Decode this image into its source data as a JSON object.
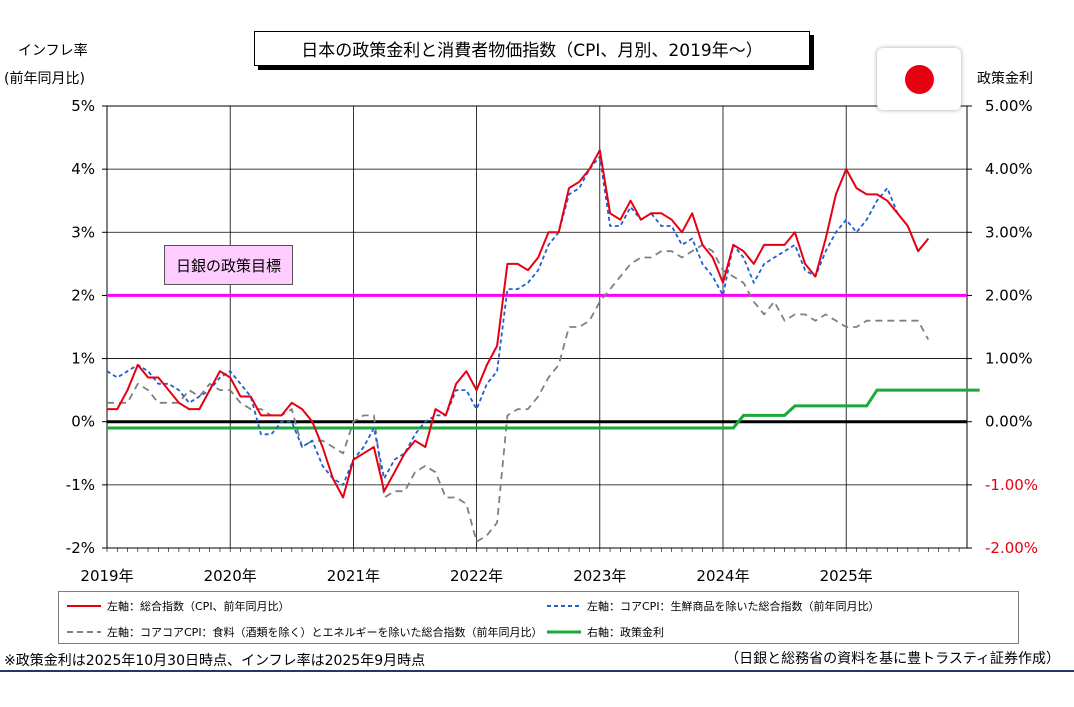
{
  "title": "日本の政策金利と消費者物価指数（CPI、月別、2019年～）",
  "left_axis_title": [
    "インフレ率",
    "(前年同月比)"
  ],
  "right_axis_title": "政策金利",
  "target_label": "日銀の政策目標",
  "footnote": "※政策金利は2025年10月30日時点、インフレ率は2025年9月時点",
  "source": "（日銀と総務省の資料を基に豊トラスティ証券作成）",
  "flag_icon": "japan-flag-icon",
  "colors": {
    "headline": "#e60012",
    "core": "#1f5fd6",
    "corecore": "#808080",
    "policy_rate": "#1aaa3a",
    "target": "#ff00ff",
    "zero_line": "#000000",
    "left_negative_tick": "#000000",
    "right_negative_tick": "#e60012"
  },
  "legend": [
    {
      "label": "左軸：総合指数（CPI、前年同月比）",
      "series": "headline"
    },
    {
      "label": "左軸：コアCPI：生鮮商品を除いた総合指数（前年同月比）",
      "series": "core"
    },
    {
      "label": "左軸：コアコアCPI：食料（酒類を除く）とエネルギーを除いた総合指数（前年同月比）",
      "series": "corecore"
    },
    {
      "label": "右軸：政策金利",
      "series": "policy_rate"
    }
  ],
  "chart_data": {
    "type": "line",
    "x_labels": [
      "2019年",
      "2020年",
      "2021年",
      "2022年",
      "2023年",
      "2024年",
      "2025年"
    ],
    "x_start": "2019-01",
    "left_axis": {
      "ylim": [
        -2,
        5
      ],
      "ticks": [
        "-2%",
        "-1%",
        "0%",
        "1%",
        "2%",
        "3%",
        "4%",
        "5%"
      ]
    },
    "right_axis": {
      "ylim": [
        -2.0,
        5.0
      ],
      "ticks": [
        "-2.00%",
        "-1.00%",
        "0.00%",
        "1.00%",
        "2.00%",
        "3.00%",
        "4.00%",
        "5.00%"
      ]
    },
    "grid": true,
    "target_value": 2.0,
    "series": [
      {
        "key": "headline",
        "name": "左軸：総合指数（CPI、前年同月比）",
        "axis": "left",
        "style": "solid",
        "values": [
          0.2,
          0.2,
          0.5,
          0.9,
          0.7,
          0.7,
          0.5,
          0.3,
          0.2,
          0.2,
          0.5,
          0.8,
          0.7,
          0.4,
          0.4,
          0.1,
          0.1,
          0.1,
          0.3,
          0.2,
          0.0,
          -0.4,
          -0.9,
          -1.2,
          -0.6,
          -0.5,
          -0.4,
          -1.1,
          -0.8,
          -0.5,
          -0.3,
          -0.4,
          0.2,
          0.1,
          0.6,
          0.8,
          0.5,
          0.9,
          1.2,
          2.5,
          2.5,
          2.4,
          2.6,
          3.0,
          3.0,
          3.7,
          3.8,
          4.0,
          4.3,
          3.3,
          3.2,
          3.5,
          3.2,
          3.3,
          3.3,
          3.2,
          3.0,
          3.3,
          2.8,
          2.6,
          2.2,
          2.8,
          2.7,
          2.5,
          2.8,
          2.8,
          2.8,
          3.0,
          2.5,
          2.3,
          2.9,
          3.6,
          4.0,
          3.7,
          3.6,
          3.6,
          3.5,
          3.3,
          3.1,
          2.7,
          2.9
        ]
      },
      {
        "key": "core",
        "name": "左軸：コアCPI：生鮮商品を除いた総合指数（前年同月比）",
        "axis": "left",
        "style": "dashed",
        "values": [
          0.8,
          0.7,
          0.8,
          0.9,
          0.8,
          0.6,
          0.6,
          0.5,
          0.3,
          0.4,
          0.5,
          0.7,
          0.8,
          0.6,
          0.4,
          -0.2,
          -0.2,
          0.0,
          0.0,
          -0.4,
          -0.3,
          -0.7,
          -0.9,
          -1.0,
          -0.6,
          -0.4,
          -0.1,
          -0.9,
          -0.6,
          -0.5,
          -0.2,
          0.0,
          0.1,
          0.1,
          0.5,
          0.5,
          0.2,
          0.6,
          0.8,
          2.1,
          2.1,
          2.2,
          2.4,
          2.8,
          3.0,
          3.6,
          3.7,
          4.0,
          4.2,
          3.1,
          3.1,
          3.4,
          3.2,
          3.3,
          3.1,
          3.1,
          2.8,
          2.9,
          2.5,
          2.3,
          2.0,
          2.8,
          2.6,
          2.2,
          2.5,
          2.6,
          2.7,
          2.8,
          2.4,
          2.3,
          2.7,
          3.0,
          3.2,
          3.0,
          3.2,
          3.5,
          3.7,
          3.3,
          3.1,
          2.7,
          2.9
        ]
      },
      {
        "key": "corecore",
        "name": "左軸：コアコアCPI：食料（酒類を除く）とエネルギーを除いた総合指数（前年同月比）",
        "axis": "left",
        "style": "dashed",
        "values": [
          0.3,
          0.3,
          0.3,
          0.6,
          0.5,
          0.3,
          0.3,
          0.3,
          0.5,
          0.4,
          0.6,
          0.5,
          0.5,
          0.3,
          0.2,
          0.2,
          0.1,
          0.1,
          0.2,
          -0.4,
          -0.3,
          -0.3,
          -0.4,
          -0.5,
          0.0,
          0.1,
          0.1,
          -1.2,
          -1.1,
          -1.1,
          -0.8,
          -0.7,
          -0.8,
          -1.2,
          -1.2,
          -1.3,
          -1.9,
          -1.8,
          -1.6,
          0.1,
          0.2,
          0.2,
          0.4,
          0.7,
          0.9,
          1.5,
          1.5,
          1.6,
          1.9,
          2.1,
          2.3,
          2.5,
          2.6,
          2.6,
          2.7,
          2.7,
          2.6,
          2.7,
          2.8,
          2.7,
          2.4,
          2.3,
          2.2,
          1.9,
          1.7,
          1.9,
          1.6,
          1.7,
          1.7,
          1.6,
          1.7,
          1.6,
          1.5,
          1.5,
          1.6,
          1.6,
          1.6,
          1.6,
          1.6,
          1.6,
          1.3
        ]
      },
      {
        "key": "policy_rate",
        "name": "右軸：政策金利",
        "axis": "right",
        "style": "solid",
        "values": [
          -0.1,
          -0.1,
          -0.1,
          -0.1,
          -0.1,
          -0.1,
          -0.1,
          -0.1,
          -0.1,
          -0.1,
          -0.1,
          -0.1,
          -0.1,
          -0.1,
          -0.1,
          -0.1,
          -0.1,
          -0.1,
          -0.1,
          -0.1,
          -0.1,
          -0.1,
          -0.1,
          -0.1,
          -0.1,
          -0.1,
          -0.1,
          -0.1,
          -0.1,
          -0.1,
          -0.1,
          -0.1,
          -0.1,
          -0.1,
          -0.1,
          -0.1,
          -0.1,
          -0.1,
          -0.1,
          -0.1,
          -0.1,
          -0.1,
          -0.1,
          -0.1,
          -0.1,
          -0.1,
          -0.1,
          -0.1,
          -0.1,
          -0.1,
          -0.1,
          -0.1,
          -0.1,
          -0.1,
          -0.1,
          -0.1,
          -0.1,
          -0.1,
          -0.1,
          -0.1,
          -0.1,
          -0.1,
          0.1,
          0.1,
          0.1,
          0.1,
          0.1,
          0.25,
          0.25,
          0.25,
          0.25,
          0.25,
          0.25,
          0.25,
          0.25,
          0.5,
          0.5,
          0.5,
          0.5,
          0.5,
          0.5,
          0.5,
          0.5,
          0.5,
          0.5,
          0.5
        ]
      }
    ]
  }
}
